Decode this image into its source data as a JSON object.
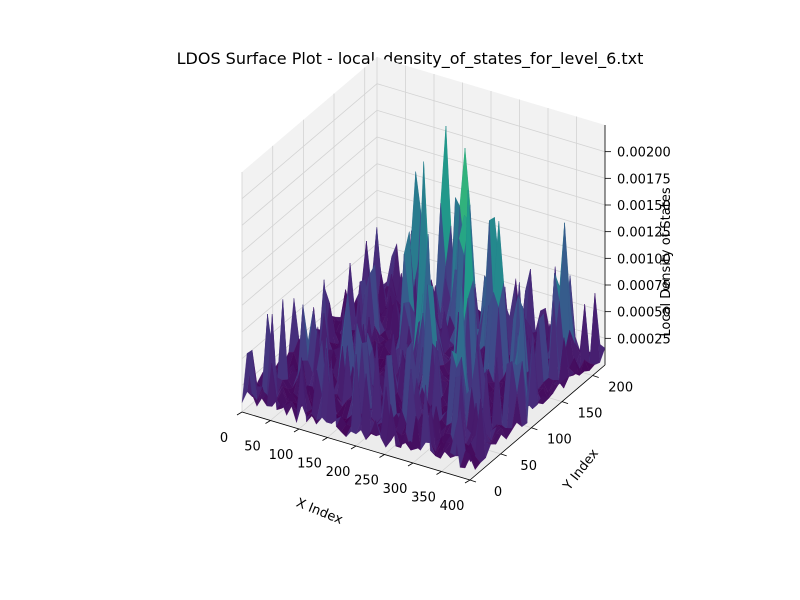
{
  "chart_data": {
    "type": "surface3d",
    "title": "LDOS Surface Plot - local_density_of_states_for_level_6.txt",
    "xlabel": "X Index",
    "ylabel": "Y Index",
    "zlabel": "Local Density of States",
    "xlim": [
      0,
      400
    ],
    "ylim": [
      0,
      220
    ],
    "zlim": [
      0,
      0.00225
    ],
    "x_ticks": [
      "0",
      "50",
      "100",
      "150",
      "200",
      "250",
      "300",
      "350",
      "400"
    ],
    "y_ticks": [
      "0",
      "50",
      "100",
      "150",
      "200"
    ],
    "z_ticks": [
      "0.00025",
      "0.00050",
      "0.00075",
      "0.00100",
      "0.00125",
      "0.00150",
      "0.00175",
      "0.00200"
    ],
    "x_tick_values": [
      0,
      50,
      100,
      150,
      200,
      250,
      300,
      350,
      400
    ],
    "y_tick_values": [
      0,
      50,
      100,
      150,
      200
    ],
    "z_tick_values": [
      0.00025,
      0.0005,
      0.00075,
      0.001,
      0.00125,
      0.0015,
      0.00175,
      0.002
    ],
    "colormap": "viridis",
    "grid": true,
    "z_baseline_approx": 0.0001,
    "z_peak_max_approx": 0.0022,
    "peaks_approx": [
      {
        "x": 75,
        "y": 140,
        "z": 0.0012
      },
      {
        "x": 105,
        "y": 185,
        "z": 0.00155
      },
      {
        "x": 140,
        "y": 200,
        "z": 0.0016
      },
      {
        "x": 150,
        "y": 130,
        "z": 0.0013
      },
      {
        "x": 175,
        "y": 190,
        "z": 0.0017
      },
      {
        "x": 190,
        "y": 120,
        "z": 0.0021
      },
      {
        "x": 205,
        "y": 175,
        "z": 0.0019
      },
      {
        "x": 215,
        "y": 100,
        "z": 0.0017
      },
      {
        "x": 230,
        "y": 150,
        "z": 0.002
      },
      {
        "x": 245,
        "y": 80,
        "z": 0.0016
      },
      {
        "x": 260,
        "y": 165,
        "z": 0.0018
      },
      {
        "x": 280,
        "y": 110,
        "z": 0.0021
      },
      {
        "x": 300,
        "y": 140,
        "z": 0.0015
      },
      {
        "x": 320,
        "y": 60,
        "z": 0.0014
      },
      {
        "x": 345,
        "y": 130,
        "z": 0.0013
      },
      {
        "x": 355,
        "y": 195,
        "z": 0.0014
      },
      {
        "x": 380,
        "y": 100,
        "z": 0.0012
      },
      {
        "x": 60,
        "y": 60,
        "z": 0.0008
      },
      {
        "x": 120,
        "y": 60,
        "z": 0.0011
      },
      {
        "x": 170,
        "y": 40,
        "z": 0.0009
      }
    ],
    "noise_seed": 7
  }
}
